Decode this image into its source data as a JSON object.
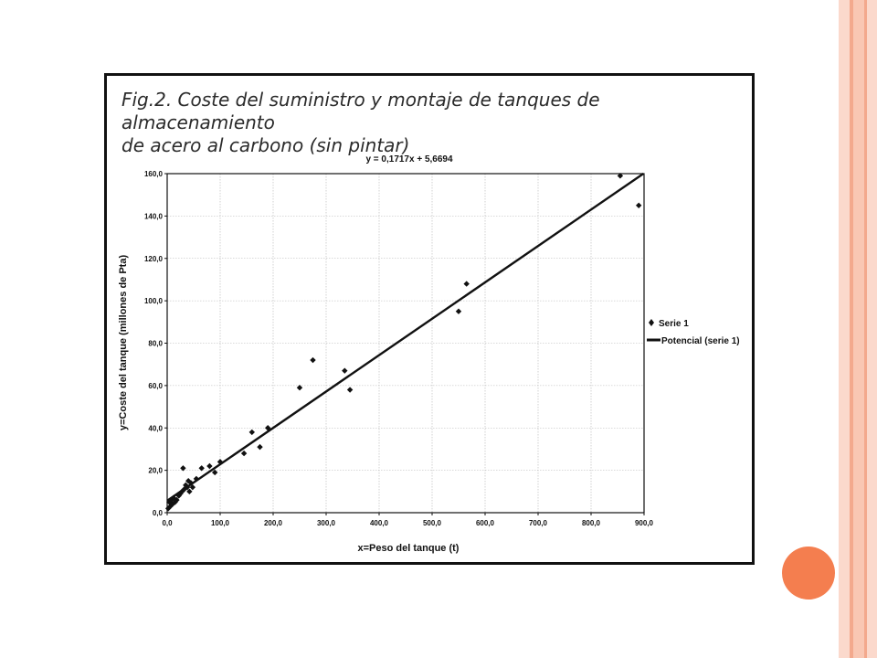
{
  "theme": {
    "stripe_colors": [
      "#f9c7b3",
      "#f3a98d",
      "#fbd9cc"
    ],
    "accent": "#f47e4f",
    "frame": "#111111"
  },
  "figure": {
    "title_line1": "Fig.2. Coste del suministro y montaje de tanques de almacenamiento",
    "title_line2": "de acero al carbono (sin pintar)"
  },
  "chart_data": {
    "type": "scatter",
    "equation": "y = 0,1717x + 5,6694",
    "xlabel": "x=Peso del tanque (t)",
    "ylabel": "y=Coste del tanque (millones de Pta)",
    "xlim": [
      0,
      900
    ],
    "ylim": [
      0,
      160
    ],
    "x_ticks": [
      0,
      100,
      200,
      300,
      400,
      500,
      600,
      700,
      800,
      900
    ],
    "y_ticks": [
      0,
      20,
      40,
      60,
      80,
      100,
      120,
      140,
      160
    ],
    "x_tick_labels": [
      "0,0",
      "100,0",
      "200,0",
      "300,0",
      "400,0",
      "500,0",
      "600,0",
      "700,0",
      "800,0",
      "900,0"
    ],
    "y_tick_labels": [
      "0,0",
      "20,0",
      "40,0",
      "60,0",
      "80,0",
      "100,0",
      "120,0",
      "140,0",
      "160,0"
    ],
    "grid": true,
    "legend_position": "right",
    "series": [
      {
        "name": "Serie 1",
        "kind": "scatter",
        "marker": "diamond",
        "color": "#111111",
        "points": [
          [
            2,
            2
          ],
          [
            4,
            5
          ],
          [
            6,
            3
          ],
          [
            8,
            6
          ],
          [
            10,
            4
          ],
          [
            12,
            7
          ],
          [
            15,
            5
          ],
          [
            18,
            6
          ],
          [
            22,
            8
          ],
          [
            25,
            9
          ],
          [
            28,
            10
          ],
          [
            30,
            21
          ],
          [
            32,
            11
          ],
          [
            35,
            13
          ],
          [
            38,
            12
          ],
          [
            40,
            15
          ],
          [
            42,
            10
          ],
          [
            45,
            14
          ],
          [
            48,
            12
          ],
          [
            55,
            16
          ],
          [
            65,
            21
          ],
          [
            80,
            22
          ],
          [
            90,
            19
          ],
          [
            100,
            24
          ],
          [
            145,
            28
          ],
          [
            160,
            38
          ],
          [
            175,
            31
          ],
          [
            190,
            40
          ],
          [
            250,
            59
          ],
          [
            275,
            72
          ],
          [
            335,
            67
          ],
          [
            345,
            58
          ],
          [
            550,
            95
          ],
          [
            565,
            108
          ],
          [
            855,
            159
          ],
          [
            890,
            145
          ]
        ]
      },
      {
        "name": "Potencial (serie 1)",
        "kind": "line",
        "slope": 0.1717,
        "intercept": 5.6694,
        "color": "#111111"
      }
    ]
  }
}
